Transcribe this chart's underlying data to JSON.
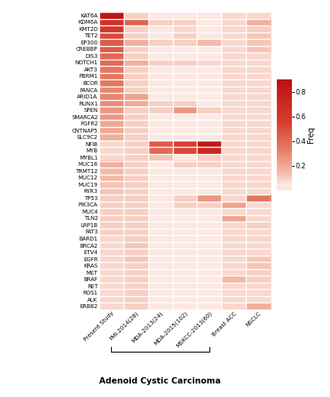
{
  "genes": [
    "KAT6A",
    "KDM6A",
    "KMT2D",
    "TET2",
    "EP300",
    "CREBBP",
    "DIS3",
    "NOTCH1",
    "AKT3",
    "PBRM1",
    "BCOR",
    "FANCA",
    "ARID1A",
    "RUNX1",
    "SPEN",
    "SMARCA2",
    "FGFR2",
    "CNTNAP5",
    "SLC9C2",
    "NFIB",
    "MYB",
    "MYBL1",
    "MUC16",
    "TRMT12",
    "MUC12",
    "MUC19",
    "RYR3",
    "TP53",
    "PIK3CA",
    "MUC4",
    "TLN2",
    "LRP1B",
    "FAT3",
    "BARD1",
    "BRCA2",
    "ETV4",
    "EGFR",
    "KRAS",
    "MET",
    "BRAF",
    "RET",
    "ROS1",
    "ALK",
    "ERBB2"
  ],
  "columns": [
    "Present Study",
    "FMI-2014(28)",
    "MDA-2013(24)",
    "MDA-2015(102)",
    "MSKCC-2013(60)",
    "Breast ACC",
    "NSCLC"
  ],
  "data": [
    [
      0.85,
      0.1,
      0.0,
      0.0,
      0.0,
      0.08,
      0.08
    ],
    [
      0.65,
      0.42,
      0.1,
      0.1,
      0.0,
      0.08,
      0.18
    ],
    [
      0.6,
      0.1,
      0.0,
      0.08,
      0.0,
      0.08,
      0.1
    ],
    [
      0.5,
      0.1,
      0.0,
      0.1,
      0.0,
      0.08,
      0.12
    ],
    [
      0.45,
      0.18,
      0.1,
      0.1,
      0.15,
      0.08,
      0.12
    ],
    [
      0.45,
      0.1,
      0.0,
      0.0,
      0.0,
      0.08,
      0.12
    ],
    [
      0.4,
      0.1,
      0.0,
      0.0,
      0.0,
      0.08,
      0.08
    ],
    [
      0.4,
      0.18,
      0.1,
      0.1,
      0.08,
      0.08,
      0.08
    ],
    [
      0.35,
      0.1,
      0.0,
      0.0,
      0.0,
      0.08,
      0.08
    ],
    [
      0.35,
      0.1,
      0.0,
      0.0,
      0.0,
      0.08,
      0.08
    ],
    [
      0.35,
      0.1,
      0.0,
      0.0,
      0.0,
      0.08,
      0.08
    ],
    [
      0.3,
      0.1,
      0.0,
      0.0,
      0.0,
      0.08,
      0.08
    ],
    [
      0.3,
      0.22,
      0.0,
      0.0,
      0.0,
      0.08,
      0.08
    ],
    [
      0.28,
      0.2,
      0.1,
      0.1,
      0.0,
      0.08,
      0.08
    ],
    [
      0.25,
      0.1,
      0.1,
      0.25,
      0.1,
      0.08,
      0.08
    ],
    [
      0.25,
      0.1,
      0.0,
      0.0,
      0.0,
      0.08,
      0.08
    ],
    [
      0.2,
      0.1,
      0.0,
      0.0,
      0.0,
      0.08,
      0.08
    ],
    [
      0.2,
      0.1,
      0.0,
      0.0,
      0.0,
      0.08,
      0.08
    ],
    [
      0.18,
      0.1,
      0.0,
      0.0,
      0.0,
      0.08,
      0.08
    ],
    [
      0.08,
      0.1,
      0.45,
      0.55,
      0.82,
      0.08,
      0.08
    ],
    [
      0.08,
      0.1,
      0.4,
      0.52,
      0.72,
      0.08,
      0.08
    ],
    [
      0.08,
      0.1,
      0.12,
      0.0,
      0.1,
      0.08,
      0.08
    ],
    [
      0.18,
      0.1,
      0.0,
      0.1,
      0.1,
      0.08,
      0.08
    ],
    [
      0.15,
      0.1,
      0.0,
      0.0,
      0.0,
      0.08,
      0.08
    ],
    [
      0.15,
      0.1,
      0.0,
      0.0,
      0.0,
      0.08,
      0.08
    ],
    [
      0.12,
      0.1,
      0.0,
      0.0,
      0.0,
      0.08,
      0.08
    ],
    [
      0.12,
      0.1,
      0.0,
      0.0,
      0.0,
      0.08,
      0.08
    ],
    [
      0.1,
      0.1,
      0.0,
      0.1,
      0.25,
      0.08,
      0.35
    ],
    [
      0.1,
      0.1,
      0.0,
      0.1,
      0.1,
      0.22,
      0.08
    ],
    [
      0.1,
      0.1,
      0.0,
      0.0,
      0.0,
      0.08,
      0.08
    ],
    [
      0.1,
      0.1,
      0.0,
      0.0,
      0.0,
      0.22,
      0.08
    ],
    [
      0.1,
      0.1,
      0.0,
      0.0,
      0.0,
      0.08,
      0.1
    ],
    [
      0.1,
      0.1,
      0.0,
      0.0,
      0.0,
      0.08,
      0.08
    ],
    [
      0.08,
      0.1,
      0.0,
      0.0,
      0.0,
      0.08,
      0.08
    ],
    [
      0.08,
      0.12,
      0.0,
      0.0,
      0.0,
      0.08,
      0.08
    ],
    [
      0.08,
      0.1,
      0.0,
      0.0,
      0.0,
      0.08,
      0.08
    ],
    [
      0.08,
      0.12,
      0.0,
      0.0,
      0.0,
      0.08,
      0.12
    ],
    [
      0.08,
      0.1,
      0.0,
      0.0,
      0.0,
      0.08,
      0.12
    ],
    [
      0.08,
      0.1,
      0.0,
      0.0,
      0.0,
      0.08,
      0.1
    ],
    [
      0.08,
      0.1,
      0.0,
      0.0,
      0.0,
      0.15,
      0.1
    ],
    [
      0.08,
      0.1,
      0.0,
      0.0,
      0.0,
      0.08,
      0.08
    ],
    [
      0.08,
      0.1,
      0.0,
      0.0,
      0.0,
      0.08,
      0.08
    ],
    [
      0.08,
      0.1,
      0.0,
      0.0,
      0.0,
      0.08,
      0.08
    ],
    [
      0.08,
      0.1,
      0.0,
      0.0,
      0.0,
      0.08,
      0.18
    ]
  ],
  "colorbar_label": "Freq",
  "colorbar_ticks": [
    0.2,
    0.4,
    0.6,
    0.8
  ],
  "vmin": 0.0,
  "vmax": 0.9,
  "adenoid_label": "Adenoid Cystic Carcinoma",
  "cell_bg": "#fce8e2",
  "grid_color": "#ffffff"
}
